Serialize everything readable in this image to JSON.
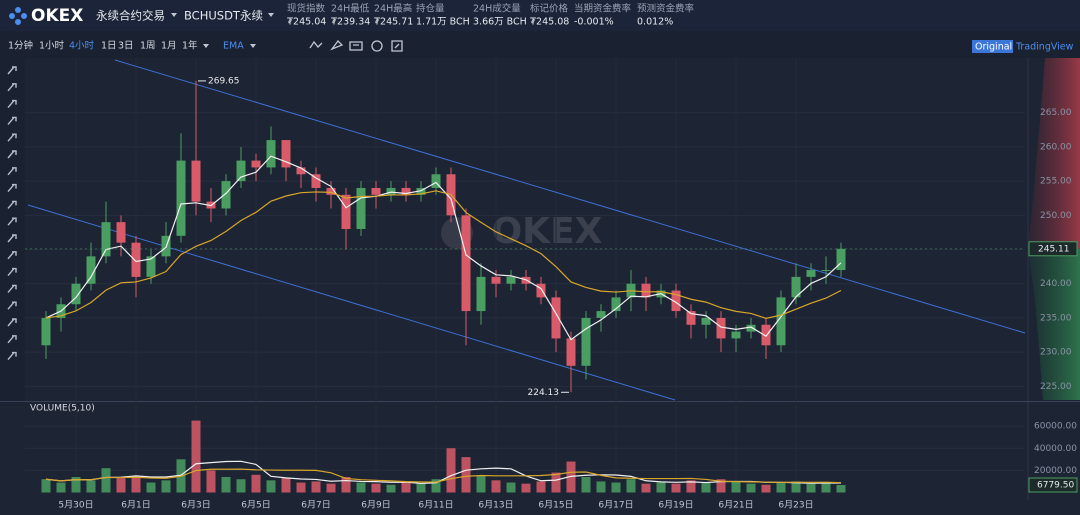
{
  "header": {
    "logo": "OKEX",
    "product": "永续合约交易",
    "contract": "BCHUSDT永续",
    "stats": [
      {
        "label": "现货指数",
        "value": "₮245.04"
      },
      {
        "label": "24H最低",
        "value": "₮239.34"
      },
      {
        "label": "24H最高",
        "value": "₮245.71"
      },
      {
        "label": "持仓量",
        "value": "1.71万 BCH"
      },
      {
        "label": "24H成交量",
        "value": "3.66万 BCH"
      },
      {
        "label": "标记价格",
        "value": "₮245.08"
      },
      {
        "label": "当期资金费率",
        "value": "-0.001%"
      },
      {
        "label": "预测资金费率",
        "value": "0.012%"
      }
    ]
  },
  "toolbar": {
    "intervals": [
      "1分钟",
      "1小时",
      "4小时",
      "1日",
      "3日",
      "1周",
      "1月",
      "1年"
    ],
    "active_interval": 2,
    "indicator": "EMA",
    "views": [
      "Original",
      "TradingView"
    ],
    "active_view": 0
  },
  "chart_data": {
    "type": "candlestick",
    "watermark": "OKEX",
    "volume_title": "VOLUME(5,10)",
    "up_color": "#4a9e62",
    "down_color": "#d95b6a",
    "categories": [
      null,
      null,
      "5月30日",
      null,
      null,
      null,
      "6月1日",
      null,
      null,
      null,
      "6月3日",
      null,
      null,
      null,
      "6月5日",
      null,
      null,
      null,
      "6月7日",
      null,
      null,
      null,
      "6月9日",
      null,
      null,
      null,
      "6月11日",
      null,
      null,
      null,
      "6月13日",
      null,
      null,
      null,
      "6月15日",
      null,
      null,
      null,
      "6月17日",
      null,
      null,
      null,
      "6月19日",
      null,
      null,
      null,
      "6月21日",
      null,
      null,
      null,
      "6月23日",
      null,
      null,
      null
    ],
    "open": [
      231,
      235,
      237,
      240,
      244,
      249,
      246,
      241,
      244,
      247,
      258,
      252,
      251,
      255,
      258,
      257,
      261,
      257,
      256,
      254,
      253,
      248,
      254,
      253,
      254,
      253,
      254,
      256,
      250,
      236,
      241,
      240,
      241,
      240,
      238,
      232,
      228,
      235,
      236,
      238,
      240,
      238,
      239,
      236,
      234,
      235,
      232,
      233,
      234,
      231,
      238,
      241,
      242,
      242
    ],
    "high": [
      236,
      238,
      241,
      246,
      252,
      250,
      247,
      245,
      249,
      262,
      269.65,
      254,
      256,
      260,
      259,
      263,
      261,
      258,
      257,
      255,
      254,
      255,
      255,
      255,
      255,
      255,
      257,
      257,
      251,
      243,
      242,
      242,
      242,
      241,
      239,
      233,
      236,
      237,
      239,
      242,
      241,
      240,
      240,
      237,
      236,
      236,
      234,
      235,
      235,
      239,
      243,
      243,
      244,
      246
    ],
    "low": [
      229,
      233,
      236,
      239,
      243,
      244,
      238,
      240,
      243,
      246,
      250,
      249,
      250,
      254,
      255,
      256,
      255,
      254,
      252,
      251,
      245,
      247,
      251,
      252,
      252,
      252,
      253,
      249,
      231,
      234,
      238,
      239,
      239,
      237,
      230,
      224.13,
      226,
      233,
      235,
      236,
      236,
      237,
      235,
      232,
      232,
      230,
      230,
      232,
      229,
      230,
      237,
      239,
      240,
      241
    ],
    "close": [
      235,
      237,
      240,
      244,
      249,
      246,
      241,
      244,
      247,
      258,
      252,
      251,
      255,
      258,
      257,
      261,
      257,
      256,
      254,
      253,
      248,
      254,
      253,
      254,
      253,
      254,
      256,
      250,
      236,
      241,
      240,
      241,
      240,
      238,
      232,
      228,
      235,
      236,
      238,
      240,
      238,
      239,
      236,
      234,
      235,
      232,
      233,
      234,
      231,
      238,
      241,
      242,
      242,
      245.11
    ],
    "volume": [
      12000,
      9000,
      14000,
      11000,
      22000,
      13000,
      15000,
      9000,
      11000,
      30000,
      65000,
      20000,
      14000,
      12000,
      16000,
      11000,
      13000,
      9000,
      10000,
      8000,
      14000,
      9000,
      8000,
      7000,
      9000,
      8000,
      12000,
      40000,
      32000,
      15000,
      11000,
      9000,
      8000,
      10000,
      18000,
      28000,
      14000,
      10000,
      9000,
      12000,
      8000,
      9000,
      8000,
      11000,
      9000,
      12000,
      10000,
      8000,
      7000,
      9000,
      10000,
      8000,
      9000,
      6779.5
    ],
    "ylim": [
      223,
      273
    ],
    "yticks": [
      {
        "value": 225,
        "label": "225.00"
      },
      {
        "value": 230,
        "label": "230.00"
      },
      {
        "value": 235,
        "label": "235.00"
      },
      {
        "value": 240,
        "label": "240.00"
      },
      {
        "value": 245,
        "label": "245.00"
      },
      {
        "value": 250,
        "label": "250.00"
      },
      {
        "value": 255,
        "label": "255.00"
      },
      {
        "value": 260,
        "label": "260.00"
      },
      {
        "value": 265,
        "label": "265.00"
      }
    ],
    "vlim": [
      0,
      80000
    ],
    "vticks": [
      {
        "value": 20000,
        "label": "20000.00"
      },
      {
        "value": 40000,
        "label": "40000.00"
      },
      {
        "value": 60000,
        "label": "60000.00"
      }
    ],
    "last_price": 245.11,
    "last_volume": {
      "value": 6779.5,
      "label": "6779.50"
    },
    "max_label": 269.65,
    "min_label": 224.13,
    "grid": true
  }
}
